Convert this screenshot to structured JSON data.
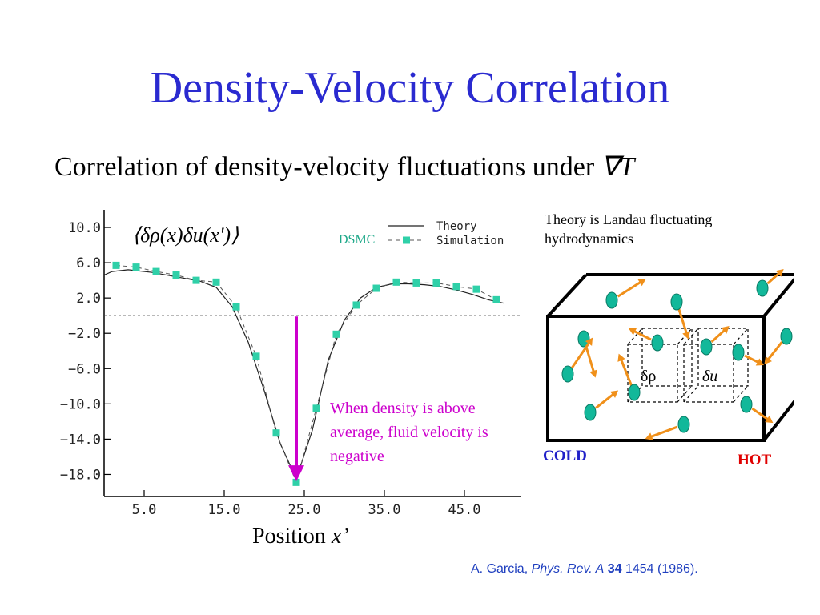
{
  "slide": {
    "title": "Density-Velocity Correlation",
    "subtitle_text": "Correlation of density-velocity fluctuations under ",
    "subtitle_symbol": "∇T",
    "theory_note": "Theory is Landau fluctuating hydrodynamics",
    "annotation": "When density is above average, fluid velocity is negative",
    "dsmc_label": "DSMC",
    "xlabel_text": "Position ",
    "xlabel_var": "x’",
    "cold_label": "COLD",
    "hot_label": "HOT",
    "delta_rho": "δρ",
    "delta_u": "δu",
    "citation": {
      "author": "A. Garcia, ",
      "journal": "Phys. Rev. A",
      "volume": "34",
      "rest": " 1454 (1986)."
    },
    "colors": {
      "title": "#2a2ad0",
      "annotation": "#cc00cc",
      "dsmc": "#1fa98a",
      "cold": "#2020c8",
      "hot": "#e00000",
      "arrow": "#f0901a"
    }
  },
  "chart_data": {
    "type": "line",
    "ylabel_formula": "⟨δρ(x)δu(x')⟩",
    "xlim": [
      0,
      52
    ],
    "ylim": [
      -20.5,
      12
    ],
    "xticks": [
      5,
      15,
      25,
      35,
      45
    ],
    "xtick_labels": [
      "5.0",
      "15.0",
      "25.0",
      "35.0",
      "45.0"
    ],
    "yticks": [
      10,
      6,
      2,
      -2,
      -6,
      -10,
      -14,
      -18
    ],
    "ytick_labels": [
      "10.0",
      "6.0",
      "2.0",
      "−2.0",
      "−6.0",
      "−10.0",
      "−14.0",
      "−18.0"
    ],
    "zero_line": true,
    "legend": {
      "position": "top-right",
      "entries": [
        "Theory",
        "Simulation"
      ]
    },
    "series": [
      {
        "name": "Theory",
        "style": "solid",
        "x": [
          0,
          1,
          3,
          6,
          9,
          12,
          14,
          16,
          18,
          20,
          22,
          24,
          26,
          28,
          30,
          32,
          34,
          36,
          38,
          40,
          42,
          44,
          46,
          48,
          50
        ],
        "values": [
          4.6,
          5.0,
          5.2,
          4.9,
          4.4,
          3.9,
          3.2,
          1.0,
          -3.0,
          -8.5,
          -14.5,
          -18.5,
          -13.0,
          -5.0,
          -0.5,
          2.0,
          3.2,
          3.6,
          3.6,
          3.5,
          3.3,
          2.9,
          2.4,
          1.8,
          1.4
        ]
      },
      {
        "name": "Simulation",
        "style": "dashed",
        "x": [
          1.5,
          4,
          6.5,
          9,
          11.5,
          14,
          16.5,
          19,
          21.5,
          24,
          26.5,
          29,
          31.5,
          34,
          36.5,
          39,
          41.5,
          44,
          46.5,
          49
        ],
        "values": [
          5.7,
          5.5,
          5.0,
          4.6,
          4.0,
          3.8,
          1.0,
          -4.6,
          -13.3,
          -18.9,
          -10.5,
          -2.1,
          1.2,
          3.1,
          3.8,
          3.7,
          3.7,
          3.3,
          3.0,
          1.8
        ]
      }
    ]
  }
}
